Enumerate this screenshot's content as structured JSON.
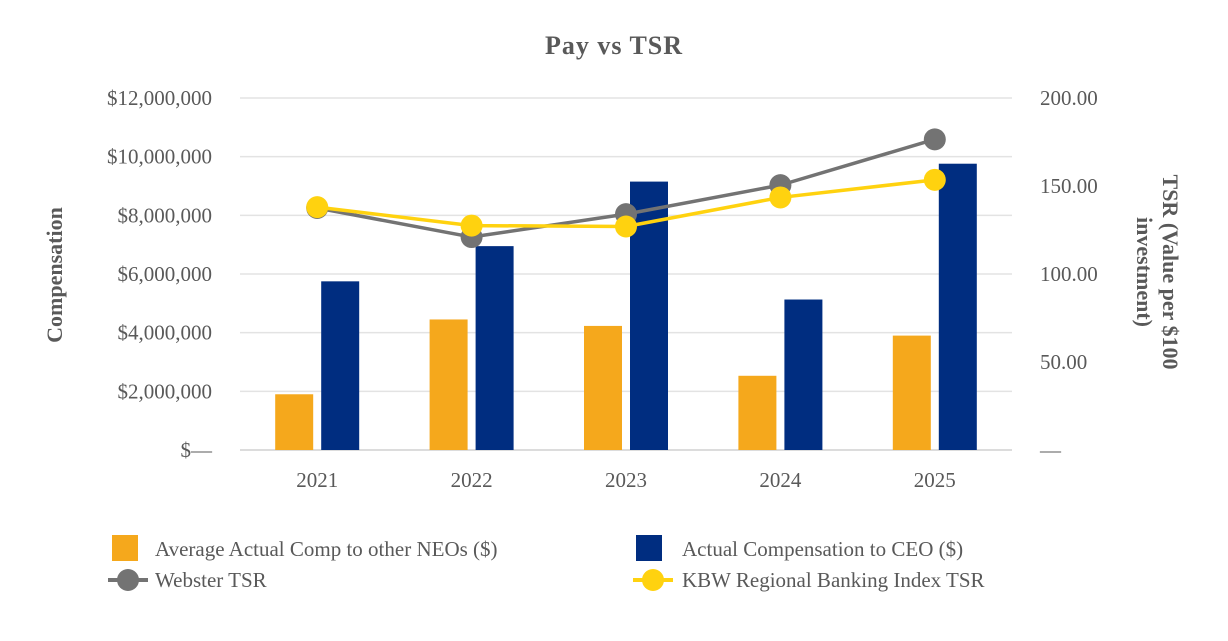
{
  "chart_data": {
    "type": "bar",
    "title": "Pay vs TSR",
    "categories": [
      "2021",
      "2022",
      "2023",
      "2024",
      "2025"
    ],
    "y_left": {
      "label": "Compensation",
      "range": [
        0,
        12000000
      ],
      "ticks": [
        {
          "value": 0,
          "label": "$—"
        },
        {
          "value": 2000000,
          "label": "$2,000,000"
        },
        {
          "value": 4000000,
          "label": "$4,000,000"
        },
        {
          "value": 6000000,
          "label": "$6,000,000"
        },
        {
          "value": 8000000,
          "label": "$8,000,000"
        },
        {
          "value": 10000000,
          "label": "$10,000,000"
        },
        {
          "value": 12000000,
          "label": "$12,000,000"
        }
      ]
    },
    "y_right": {
      "label_line1": "TSR (Value per $100",
      "label_line2": "investment)",
      "range": [
        0,
        200
      ],
      "ticks": [
        {
          "value": 0,
          "label": "—"
        },
        {
          "value": 50,
          "label": "50.00"
        },
        {
          "value": 100,
          "label": "100.00"
        },
        {
          "value": 150,
          "label": "150.00"
        },
        {
          "value": 200,
          "label": "200.00"
        }
      ]
    },
    "bar_series": [
      {
        "name": "Average Actual Comp to other NEOs ($)",
        "color": "#F5A81C",
        "values": [
          1900000,
          4450000,
          4230000,
          2530000,
          3900000
        ]
      },
      {
        "name": "Actual Compensation to CEO ($)",
        "color": "#002D80",
        "values": [
          5750000,
          6950000,
          9150000,
          5130000,
          9760000
        ]
      }
    ],
    "line_series": [
      {
        "name": "Webster TSR",
        "color": "#737373",
        "values": [
          137.5,
          121,
          134,
          150.5,
          176.5
        ]
      },
      {
        "name": "KBW Regional Banking Index TSR",
        "color": "#FFD20F",
        "values": [
          138,
          127.5,
          127,
          143.5,
          153.5
        ]
      }
    ],
    "grid": true,
    "legend_position": "bottom"
  }
}
